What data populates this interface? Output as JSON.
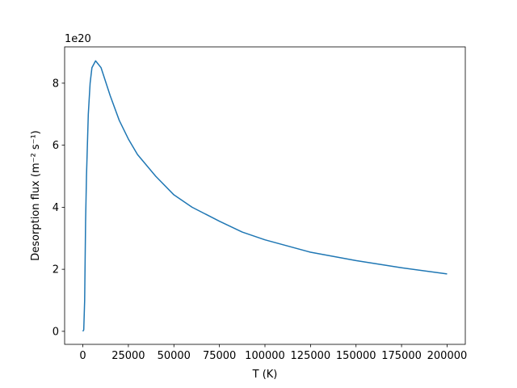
{
  "chart_data": {
    "type": "line",
    "x_label": "T (K)",
    "y_label": "Desorption flux (m⁻² s⁻¹)",
    "y_offset_label": "1e20",
    "x": [
      0,
      500,
      1000,
      1500,
      2000,
      3000,
      4000,
      5000,
      7000,
      10000,
      15000,
      20000,
      25000,
      30000,
      40000,
      50000,
      60000,
      75000,
      87500,
      100000,
      125000,
      150000,
      175000,
      200000
    ],
    "series": [
      {
        "name": "flux",
        "color": "#1f77b4",
        "values": [
          0,
          0.05,
          1.0,
          3.5,
          5.0,
          7.0,
          8.0,
          8.5,
          8.72,
          8.5,
          7.6,
          6.8,
          6.2,
          5.7,
          5.0,
          4.4,
          4.0,
          3.55,
          3.2,
          2.95,
          2.55,
          2.28,
          2.05,
          1.85
        ]
      }
    ],
    "xlim": [
      -10000,
      210000
    ],
    "ylim": [
      -0.42,
      9.17
    ],
    "xticks": [
      0,
      25000,
      50000,
      75000,
      100000,
      125000,
      150000,
      175000,
      200000
    ],
    "yticks": [
      0,
      2,
      4,
      6,
      8
    ],
    "grid": false
  }
}
